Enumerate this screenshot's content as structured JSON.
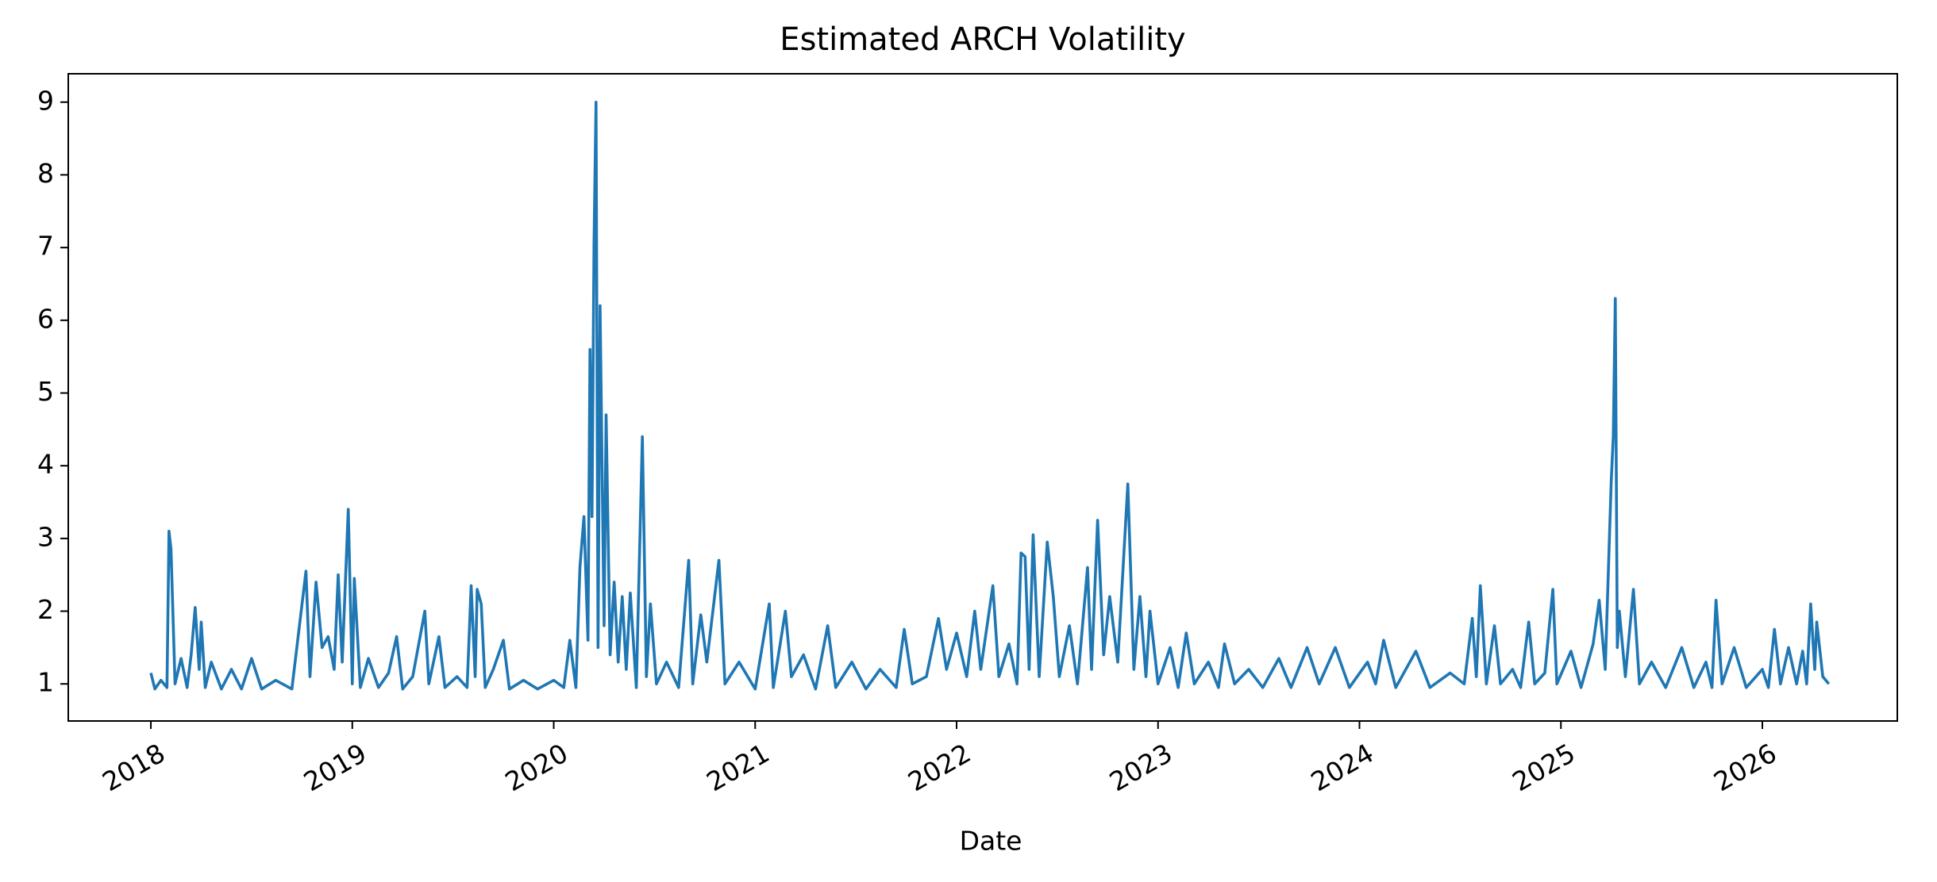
{
  "chart_data": {
    "type": "line",
    "title": "Estimated ARCH Volatility",
    "xlabel": "Date",
    "color": "#1f77b4",
    "xlim": [
      2017.59,
      2026.67
    ],
    "xticks": [
      2018,
      2019,
      2020,
      2021,
      2022,
      2023,
      2024,
      2025,
      2026
    ],
    "ylim": [
      0.49,
      9.39
    ],
    "yticks": [
      1,
      2,
      3,
      4,
      5,
      6,
      7,
      8,
      9
    ],
    "x": [
      2018.0,
      2018.02,
      2018.05,
      2018.08,
      2018.09,
      2018.1,
      2018.12,
      2018.15,
      2018.18,
      2018.2,
      2018.22,
      2018.24,
      2018.25,
      2018.27,
      2018.3,
      2018.35,
      2018.4,
      2018.45,
      2018.5,
      2018.55,
      2018.62,
      2018.7,
      2018.77,
      2018.79,
      2018.82,
      2018.85,
      2018.88,
      2018.91,
      2018.93,
      2018.95,
      2018.98,
      2019.0,
      2019.01,
      2019.04,
      2019.08,
      2019.13,
      2019.18,
      2019.22,
      2019.25,
      2019.3,
      2019.36,
      2019.38,
      2019.43,
      2019.46,
      2019.52,
      2019.57,
      2019.59,
      2019.61,
      2019.62,
      2019.64,
      2019.66,
      2019.7,
      2019.75,
      2019.78,
      2019.85,
      2019.92,
      2020.0,
      2020.05,
      2020.08,
      2020.11,
      2020.13,
      2020.15,
      2020.17,
      2020.18,
      2020.19,
      2020.2,
      2020.21,
      2020.22,
      2020.23,
      2020.24,
      2020.25,
      2020.26,
      2020.28,
      2020.3,
      2020.32,
      2020.34,
      2020.36,
      2020.38,
      2020.41,
      2020.44,
      2020.46,
      2020.48,
      2020.51,
      2020.56,
      2020.62,
      2020.67,
      2020.69,
      2020.73,
      2020.76,
      2020.82,
      2020.85,
      2020.92,
      2021.0,
      2021.07,
      2021.09,
      2021.15,
      2021.18,
      2021.24,
      2021.3,
      2021.36,
      2021.4,
      2021.48,
      2021.55,
      2021.62,
      2021.7,
      2021.74,
      2021.78,
      2021.85,
      2021.91,
      2021.95,
      2022.0,
      2022.05,
      2022.09,
      2022.12,
      2022.18,
      2022.21,
      2022.26,
      2022.3,
      2022.32,
      2022.34,
      2022.36,
      2022.38,
      2022.41,
      2022.45,
      2022.48,
      2022.51,
      2022.56,
      2022.6,
      2022.65,
      2022.67,
      2022.7,
      2022.73,
      2022.76,
      2022.8,
      2022.85,
      2022.88,
      2022.91,
      2022.94,
      2022.96,
      2023.0,
      2023.06,
      2023.1,
      2023.14,
      2023.18,
      2023.25,
      2023.3,
      2023.33,
      2023.38,
      2023.45,
      2023.52,
      2023.6,
      2023.66,
      2023.74,
      2023.8,
      2023.88,
      2023.95,
      2024.04,
      2024.08,
      2024.12,
      2024.18,
      2024.28,
      2024.35,
      2024.45,
      2024.52,
      2024.56,
      2024.58,
      2024.6,
      2024.63,
      2024.67,
      2024.7,
      2024.76,
      2024.8,
      2024.84,
      2024.87,
      2024.92,
      2024.96,
      2024.98,
      2025.05,
      2025.1,
      2025.16,
      2025.19,
      2025.22,
      2025.25,
      2025.26,
      2025.27,
      2025.28,
      2025.29,
      2025.32,
      2025.36,
      2025.39,
      2025.45,
      2025.52,
      2025.6,
      2025.66,
      2025.72,
      2025.75,
      2025.77,
      2025.8,
      2025.86,
      2025.92,
      2026.0,
      2026.03,
      2026.06,
      2026.09,
      2026.13,
      2026.17,
      2026.2,
      2026.22,
      2026.24,
      2026.26,
      2026.27,
      2026.3,
      2026.33
    ],
    "values": [
      1.15,
      0.93,
      1.05,
      0.95,
      3.1,
      2.85,
      1.0,
      1.35,
      0.95,
      1.4,
      2.05,
      1.2,
      1.85,
      0.95,
      1.3,
      0.93,
      1.2,
      0.93,
      1.35,
      0.93,
      1.05,
      0.93,
      2.55,
      1.1,
      2.4,
      1.5,
      1.65,
      1.2,
      2.5,
      1.3,
      3.4,
      1.0,
      2.45,
      0.95,
      1.35,
      0.95,
      1.15,
      1.65,
      0.93,
      1.1,
      2.0,
      1.0,
      1.65,
      0.95,
      1.1,
      0.95,
      2.35,
      1.1,
      2.3,
      2.1,
      0.95,
      1.2,
      1.6,
      0.93,
      1.05,
      0.93,
      1.05,
      0.95,
      1.6,
      0.95,
      2.6,
      3.3,
      1.6,
      5.6,
      3.3,
      7.05,
      9.0,
      1.5,
      6.2,
      4.0,
      1.8,
      4.7,
      1.4,
      2.4,
      1.3,
      2.2,
      1.2,
      2.25,
      0.95,
      4.4,
      1.1,
      2.1,
      1.0,
      1.3,
      0.95,
      2.7,
      1.0,
      1.95,
      1.3,
      2.7,
      1.0,
      1.3,
      0.93,
      2.1,
      0.95,
      2.0,
      1.1,
      1.4,
      0.93,
      1.8,
      0.95,
      1.3,
      0.93,
      1.2,
      0.95,
      1.75,
      1.0,
      1.1,
      1.9,
      1.2,
      1.7,
      1.1,
      2.0,
      1.2,
      2.35,
      1.1,
      1.55,
      1.0,
      2.8,
      2.75,
      1.2,
      3.05,
      1.1,
      2.95,
      2.2,
      1.1,
      1.8,
      1.0,
      2.6,
      1.2,
      3.25,
      1.4,
      2.2,
      1.3,
      3.75,
      1.2,
      2.2,
      1.1,
      2.0,
      1.0,
      1.5,
      0.95,
      1.7,
      1.0,
      1.3,
      0.95,
      1.55,
      1.0,
      1.2,
      0.95,
      1.35,
      0.95,
      1.5,
      1.0,
      1.5,
      0.95,
      1.3,
      1.0,
      1.6,
      0.95,
      1.45,
      0.95,
      1.15,
      1.0,
      1.9,
      1.1,
      2.35,
      1.0,
      1.8,
      1.0,
      1.2,
      0.95,
      1.85,
      1.0,
      1.15,
      2.3,
      1.0,
      1.45,
      0.95,
      1.55,
      2.15,
      1.2,
      3.8,
      4.4,
      6.3,
      1.5,
      2.0,
      1.1,
      2.3,
      1.0,
      1.3,
      0.95,
      1.5,
      0.95,
      1.3,
      0.95,
      2.15,
      1.0,
      1.5,
      0.95,
      1.2,
      0.95,
      1.75,
      1.0,
      1.5,
      1.0,
      1.45,
      1.0,
      2.1,
      1.2,
      1.85,
      1.1,
      1.0
    ]
  }
}
